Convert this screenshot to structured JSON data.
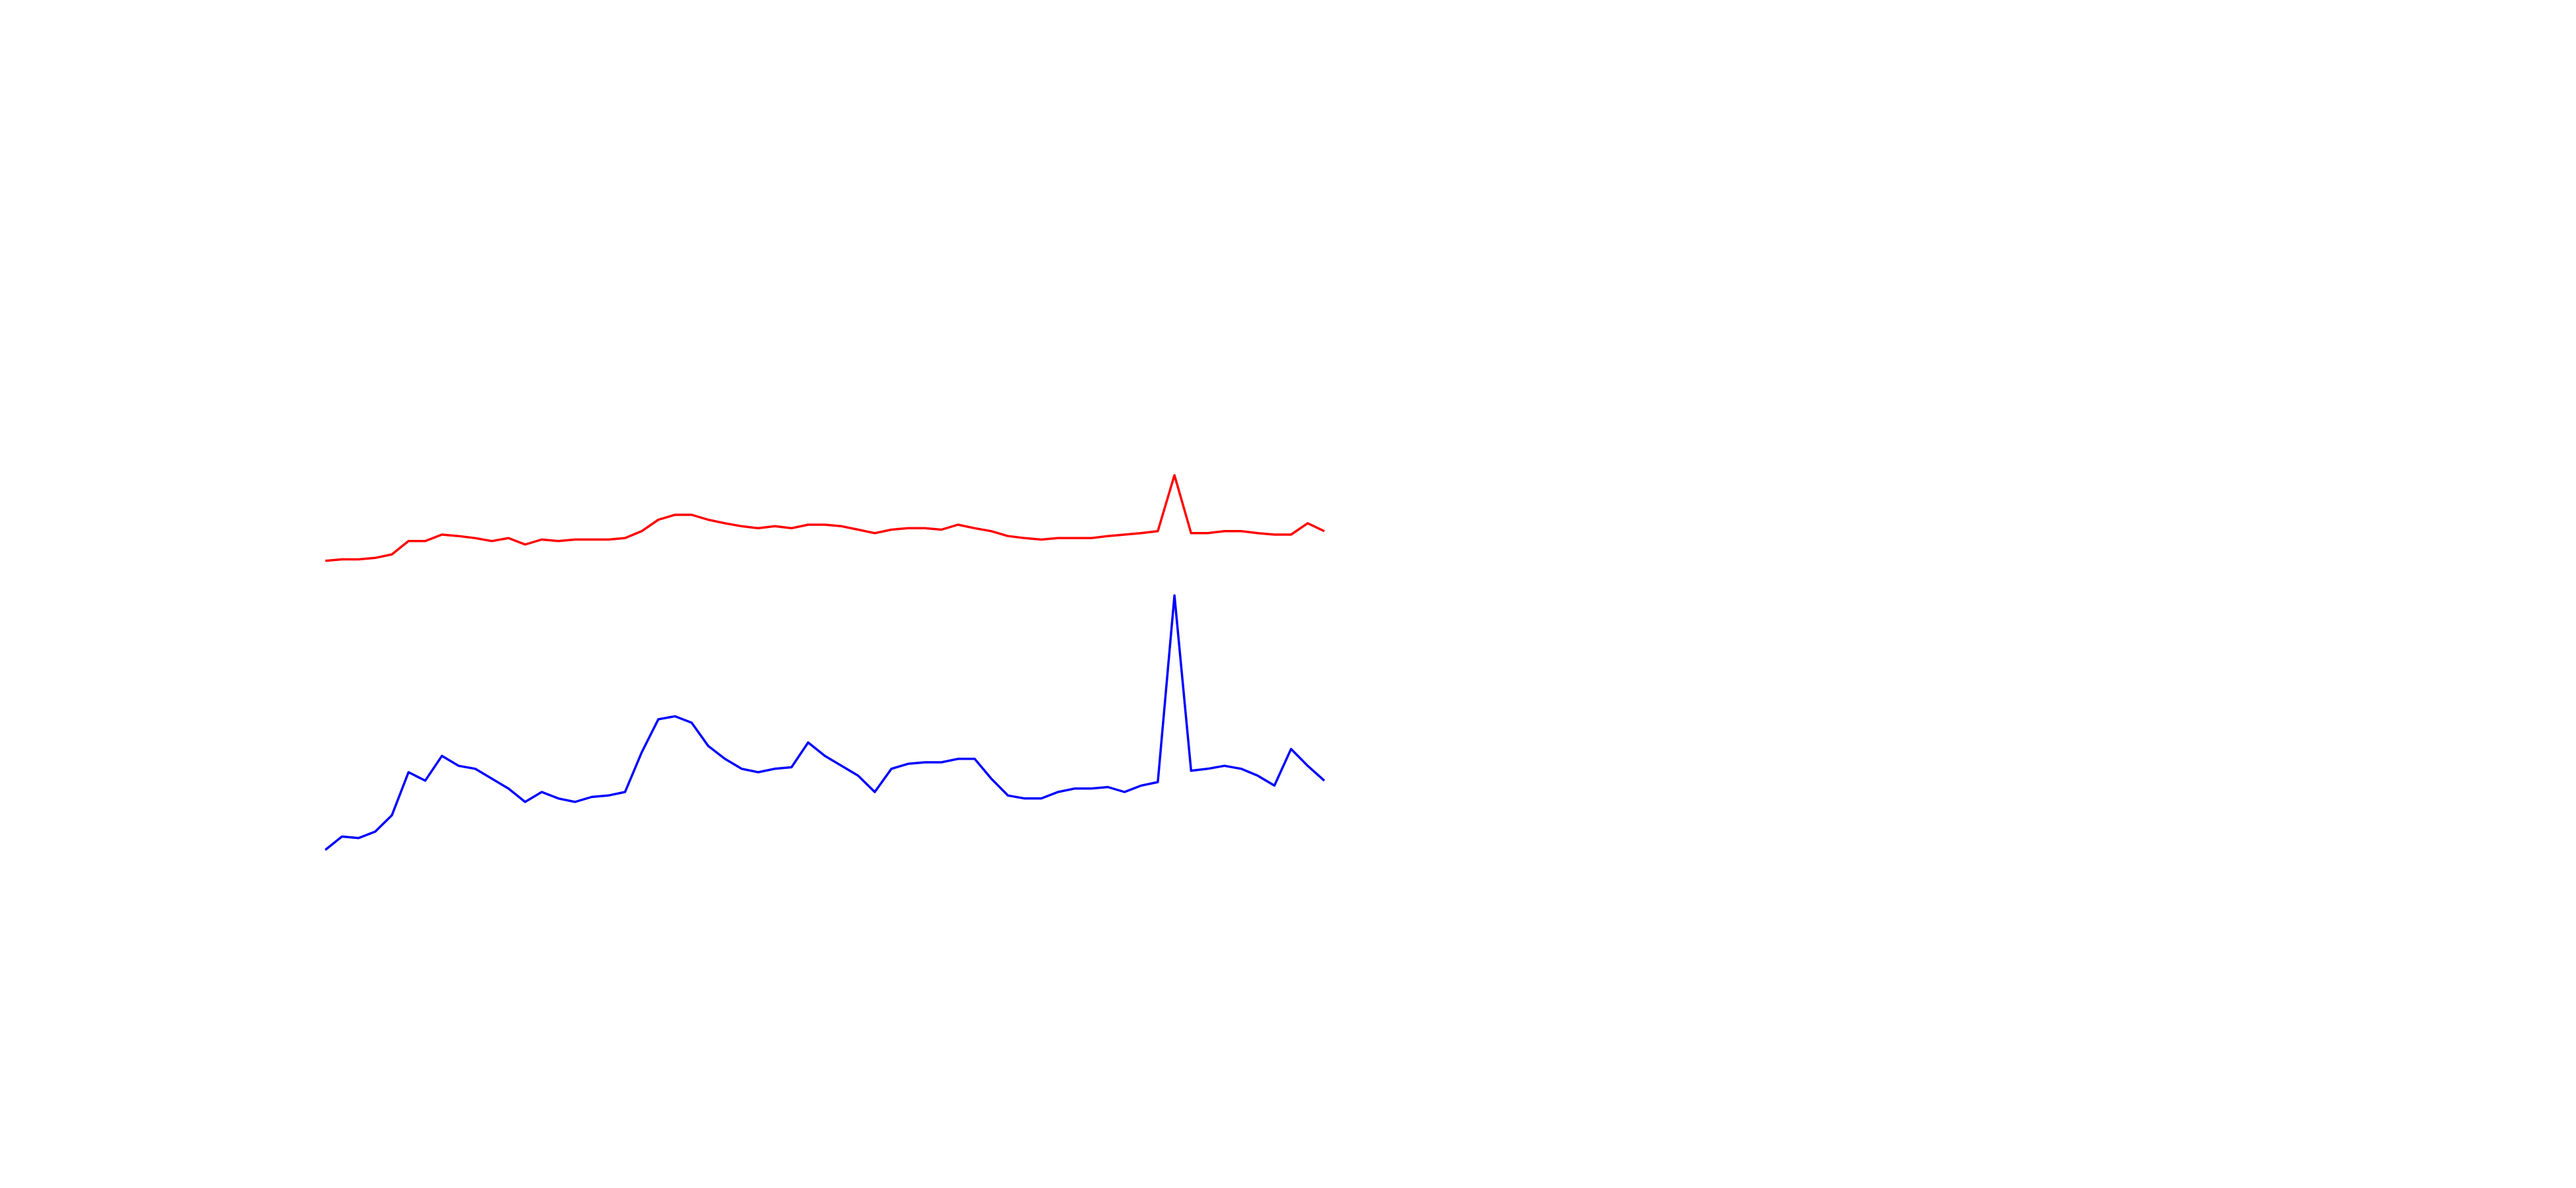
{
  "chart_data": {
    "type": "line",
    "categories": [
      null,
      null,
      null,
      null,
      null,
      null,
      null,
      null,
      null,
      null,
      null,
      null,
      null,
      null,
      null,
      null,
      null,
      null,
      null,
      null,
      null,
      null,
      null,
      null,
      null,
      null,
      null,
      null,
      null,
      null,
      null,
      null,
      null,
      null,
      null,
      null,
      null,
      null,
      null,
      null,
      null,
      null,
      null,
      null,
      null,
      null,
      null,
      null,
      null,
      null,
      null,
      null,
      null,
      null,
      null,
      null,
      null,
      null,
      null,
      null,
      null
    ],
    "ylim": [
      0,
      100
    ],
    "series": [
      {
        "color": "#ff0000",
        "values": [
          66.7,
          67,
          67,
          67.3,
          68,
          70.7,
          70.7,
          72,
          71.7,
          71.3,
          70.7,
          71.3,
          70,
          71,
          70.7,
          71,
          71,
          71,
          71.3,
          72.7,
          75,
          76,
          76,
          75,
          74.3,
          73.7,
          73.3,
          73.7,
          73.3,
          74,
          74,
          73.7,
          73,
          72.3,
          73,
          73.3,
          73.3,
          73,
          74,
          73.3,
          72.7,
          71.7,
          71.3,
          71,
          71.3,
          71.3,
          71.3,
          71.7,
          72,
          72.3,
          72.7,
          84,
          72.3,
          72.3,
          72.7,
          72.7,
          72.3,
          72,
          72,
          74.3,
          72.7
        ]
      },
      {
        "color": "#0000ff",
        "values": [
          8.3,
          11,
          10.7,
          12,
          15.3,
          24,
          22.3,
          27.3,
          25.3,
          24.7,
          22.7,
          20.7,
          18,
          20,
          18.7,
          18,
          19,
          19.3,
          20,
          28,
          34.7,
          35.3,
          34,
          29.3,
          26.7,
          24.7,
          24,
          24.7,
          25,
          30,
          27.3,
          25.3,
          23.3,
          20,
          24.7,
          25.7,
          26,
          26,
          26.7,
          26.7,
          22.7,
          19.3,
          18.7,
          18.7,
          20,
          20.7,
          20.7,
          21,
          20,
          21.3,
          22,
          59.7,
          24.3,
          24.7,
          25.3,
          24.7,
          23.3,
          21.3,
          28.7,
          25.3,
          22.3
        ]
      }
    ]
  }
}
